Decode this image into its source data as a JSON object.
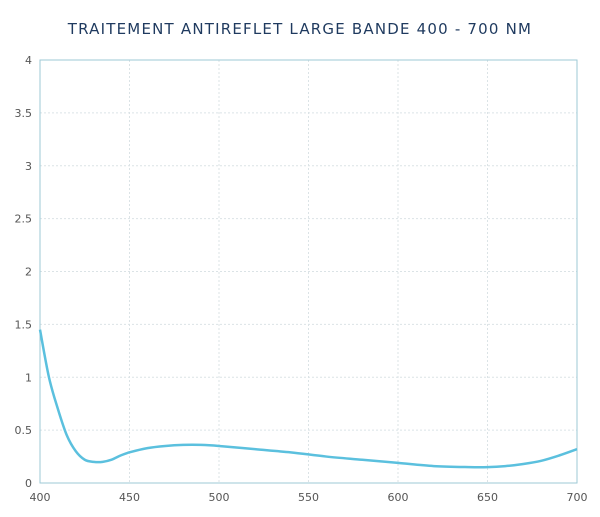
{
  "chart_data": {
    "type": "line",
    "title": "TRAITEMENT ANTIREFLET LARGE BANDE 400 - 700 NM",
    "xlabel": "",
    "ylabel": "",
    "xlim": [
      400,
      700
    ],
    "ylim": [
      0,
      4
    ],
    "grid": true,
    "x_ticks": [
      "400",
      "450",
      "500",
      "550",
      "600",
      "650",
      "700"
    ],
    "y_ticks": [
      "0",
      "0.5",
      "1",
      "1.5",
      "2",
      "2.5",
      "3",
      "3.5",
      "4"
    ],
    "series": [
      {
        "color": "#5bc0de",
        "x": [
          400,
          405,
          410,
          415,
          420,
          425,
          430,
          435,
          440,
          445,
          450,
          460,
          470,
          480,
          490,
          500,
          520,
          540,
          560,
          580,
          600,
          620,
          640,
          650,
          660,
          670,
          680,
          690,
          700
        ],
        "y": [
          1.45,
          1.0,
          0.7,
          0.45,
          0.3,
          0.22,
          0.2,
          0.2,
          0.22,
          0.26,
          0.29,
          0.33,
          0.35,
          0.36,
          0.36,
          0.35,
          0.32,
          0.29,
          0.25,
          0.22,
          0.19,
          0.16,
          0.15,
          0.15,
          0.16,
          0.18,
          0.21,
          0.26,
          0.32
        ]
      }
    ]
  }
}
